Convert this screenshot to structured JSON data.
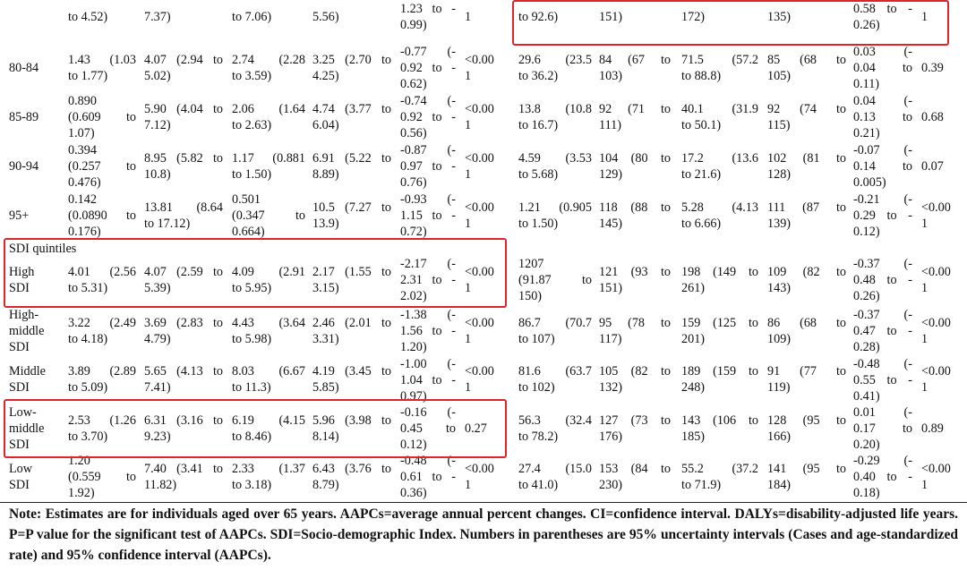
{
  "top_partial": [
    "to 4.52)",
    "7.37)",
    "to 7.06)",
    "5.56)",
    "1.23 to -\n0.99)",
    "1",
    "to 92.6)",
    "151)",
    "172)",
    "135)",
    "0.58 to -\n0.26)",
    "1"
  ],
  "rows": [
    {
      "label": "80-84",
      "cells": [
        "1.43 (1.03\nto 1.77)",
        "4.07 (2.94 to\n5.02)",
        "2.74 (2.28\nto 3.59)",
        "3.25 (2.70 to\n4.25)",
        "-0.77 (-\n0.92 to -\n0.62)",
        "<0.00\n1",
        "29.6 (23.5\nto 36.2)",
        "84 (67 to\n103)",
        "71.5 (57.2\nto 88.8)",
        "85 (68 to\n105)",
        "0.03 (-\n0.04 to\n0.11)",
        "0.39"
      ]
    },
    {
      "label": "85-89",
      "cells": [
        "0.890\n(0.609 to\n1.07)",
        "5.90 (4.04 to\n7.12)",
        "2.06 (1.64\nto 2.63)",
        "4.74 (3.77 to\n6.04)",
        "-0.74 (-\n0.92 to -\n0.56)",
        "<0.00\n1",
        "13.8 (10.8\nto 16.7)",
        "92 (71 to\n111)",
        "40.1 (31.9\nto 50.1)",
        "92 (74 to\n115)",
        "0.04 (-\n0.13 to\n0.21)",
        "0.68"
      ]
    },
    {
      "label": "90-94",
      "cells": [
        "0.394\n(0.257 to\n0.476)",
        "8.95 (5.82 to\n10.8)",
        "1.17 (0.881\nto 1.50)",
        "6.91 (5.22 to\n8.89)",
        "-0.87 (-\n0.97 to -\n0.76)",
        "<0.00\n1",
        "4.59 (3.53\nto 5.68)",
        "104 (80 to\n129)",
        "17.2 (13.6\nto 21.6)",
        "102 (81 to\n128)",
        "-0.07 (-\n0.14 to\n0.005)",
        "0.07"
      ]
    },
    {
      "label": "95+",
      "cells": [
        "0.142\n(0.0890 to\n0.176)",
        "13.81 (8.64\nto 17.12)",
        "0.501\n(0.347 to\n0.664)",
        "10.5 (7.27 to\n13.9)",
        "-0.93 (-\n1.15 to -\n0.72)",
        "<0.00\n1",
        "1.21 (0.905\nto 1.50)",
        "118 (88 to\n145)",
        "5.28 (4.13\nto 6.66)",
        "111 (87 to\n139)",
        "-0.21 (-\n0.29 to -\n0.12)",
        "<0.00\n1"
      ]
    }
  ],
  "section_label": "SDI quintiles",
  "sdi_rows": [
    {
      "label": "High\nSDI",
      "cells": [
        "4.01 (2.56\nto 5.31)",
        "4.07 (2.59 to\n5.39)",
        "4.09 (2.91\nto 5.95)",
        "2.17 (1.55 to\n3.15)",
        "-2.17 (-\n2.31 to -\n2.02)",
        "<0.00\n1",
        "1207\n(91.87 to\n150)",
        "121 (93 to\n151)",
        "198 (149 to\n261)",
        "109 (82 to\n143)",
        "-0.37 (-\n0.48 to -\n0.26)",
        "<0.00\n1"
      ]
    },
    {
      "label": "High-\nmiddle\nSDI",
      "cells": [
        "3.22 (2.49\nto 4.18)",
        "3.69 (2.83 to\n4.79)",
        "4.43 (3.64\nto 5.98)",
        "2.46 (2.01 to\n3.31)",
        "-1.38 (-\n1.56 to -\n1.20)",
        "<0.00\n1",
        "86.7 (70.7\nto 107)",
        "95 (78 to\n117)",
        "159 (125 to\n201)",
        "86 (68 to\n109)",
        "-0.37 (-\n0.47 to -\n0.28)",
        "<0.00\n1"
      ]
    },
    {
      "label": "Middle\nSDI",
      "cells": [
        "3.89 (2.89\nto 5.09)",
        "5.65 (4.13 to\n7.41)",
        "8.03 (6.67\nto 11.3)",
        "4.19 (3.45 to\n5.85)",
        "-1.00 (-\n1.04 to -\n0.97)",
        "<0.00\n1",
        "81.6 (63.7\nto 102)",
        "105 (82 to\n132)",
        "189 (159 to\n248)",
        "91 (77 to\n119)",
        "-0.48 (-\n0.55 to -\n0.41)",
        "<0.00\n1"
      ]
    },
    {
      "label": "Low-\nmiddle\nSDI",
      "cells": [
        "2.53 (1.26\nto 3.70)",
        "6.31 (3.16 to\n9.23)",
        "6.19 (4.15\nto 8.46)",
        "5.96 (3.98 to\n8.14)",
        "-0.16 (-\n0.45 to\n0.12)",
        "0.27",
        "56.3 (32.4\nto 78.2)",
        "127 (73 to\n176)",
        "143 (106 to\n185)",
        "128 (95 to\n166)",
        "0.01 (-\n0.17 to\n0.20)",
        "0.89"
      ]
    },
    {
      "label": "Low\nSDI",
      "cells": [
        "1.20\n(0.559 to\n1.92)",
        "7.40 (3.41 to\n11.82)",
        "2.33 (1.37\nto 3.18)",
        "6.43 (3.76 to\n8.79)",
        "-0.48 (-\n0.61 to -\n0.36)",
        "<0.00\n1",
        "27.4 (15.0\nto 41.0)",
        "153 (84 to\n230)",
        "55.2 (37.2\nto 71.9)",
        "141 (95 to\n184)",
        "-0.29 (-\n0.40 to -\n0.18)",
        "<0.00\n1"
      ]
    }
  ],
  "note": "Note: Estimates are for individuals aged over 65 years. AAPCs=average annual percent changes. CI=confidence interval. DALYs=disability-adjusted life years. P=P value for the significant test of AAPCs. SDI=Socio-demographic Index. Numbers in parentheses are 95% uncertainty intervals (Cases and age-standardized rate) and 95% confidence interval (AAPCs).",
  "highlight_color": "#e0242b"
}
